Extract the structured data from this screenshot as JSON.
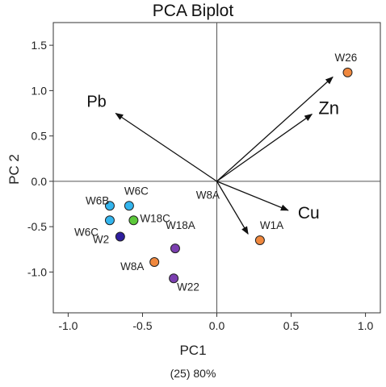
{
  "chart_data": {
    "type": "scatter",
    "title": "PCA Biplot",
    "xlabel": "PC1",
    "ylabel": "PC 2",
    "footer": "(25) 80%",
    "xlim": [
      -1.1,
      1.1
    ],
    "ylim": [
      -1.45,
      1.75
    ],
    "xticks": [
      -1.0,
      -0.5,
      0.0,
      0.5,
      1.0
    ],
    "yticks": [
      -1.0,
      -0.5,
      0.0,
      0.5,
      1.0,
      1.5
    ],
    "grid": false,
    "points": [
      {
        "label": "W26",
        "x": 0.88,
        "y": 1.2,
        "color": "#F0883E"
      },
      {
        "label": "W1A",
        "x": 0.29,
        "y": -0.65,
        "color": "#F0883E"
      },
      {
        "label": "W8A",
        "x": -0.42,
        "y": -0.89,
        "color": "#F0883E"
      },
      {
        "label": "W6B",
        "x": -0.72,
        "y": -0.27,
        "color": "#33B5EE"
      },
      {
        "label": "W6C",
        "x": -0.59,
        "y": -0.27,
        "color": "#33B5EE"
      },
      {
        "label": "W6C",
        "x": -0.72,
        "y": -0.43,
        "color": "#33B5EE"
      },
      {
        "label": "W18C",
        "x": -0.56,
        "y": -0.43,
        "color": "#5CC83A"
      },
      {
        "label": "W2",
        "x": -0.65,
        "y": -0.61,
        "color": "#2E1E9E"
      },
      {
        "label": "W18A",
        "x": -0.28,
        "y": -0.74,
        "color": "#7B3FB0"
      },
      {
        "label": "W22",
        "x": -0.29,
        "y": -1.07,
        "color": "#7B3FB0"
      }
    ],
    "extra_labels": [
      {
        "label": "W8A",
        "x": -0.14,
        "y": -0.19
      }
    ],
    "loadings": [
      {
        "label": "Pb",
        "x": -0.68,
        "y": 0.75
      },
      {
        "label": "Zn",
        "x": 0.64,
        "y": 0.74
      },
      {
        "label": "Cu",
        "x": 0.48,
        "y": -0.32
      },
      {
        "label": "",
        "x": 0.78,
        "y": 1.15
      },
      {
        "label": "",
        "x": 0.21,
        "y": -0.58
      }
    ]
  }
}
